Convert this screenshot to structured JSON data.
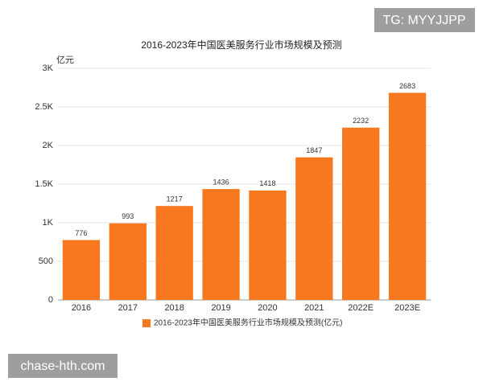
{
  "chart_data": {
    "type": "bar",
    "title": "2016-2023年中国医美服务行业市场规模及预测",
    "y_unit": "亿元",
    "categories": [
      "2016",
      "2017",
      "2018",
      "2019",
      "2020",
      "2021",
      "2022E",
      "2023E"
    ],
    "series": [
      {
        "name": "2016-2023年中国医美服务行业市场规模及预测(亿元)",
        "color": "#f7781e",
        "values": [
          776,
          993,
          1217,
          1436,
          1418,
          1847,
          2232,
          2683
        ]
      }
    ],
    "ylim": [
      0,
      3000
    ],
    "yticks": [
      0,
      500,
      {
        "value": 1000,
        "label": "1K"
      },
      {
        "value": 1500,
        "label": "1.5K"
      },
      {
        "value": 2000,
        "label": "2K"
      },
      {
        "value": 2500,
        "label": "2.5K"
      },
      {
        "value": 3000,
        "label": "3K"
      }
    ],
    "grid": true
  },
  "watermarks": [
    "TG: MYYJJPP",
    "chase-hth.com"
  ]
}
